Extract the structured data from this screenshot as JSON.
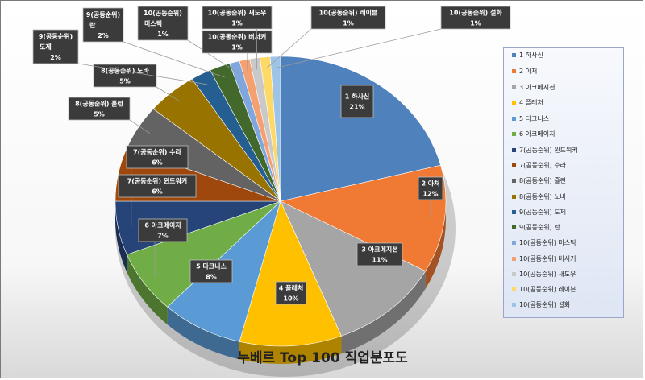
{
  "chart_data": {
    "type": "pie",
    "title": "누베르 Top 100 직업분포도",
    "slices": [
      {
        "label": "1 하사신",
        "value": 21,
        "pct_label": "21%",
        "color": "#4f81bd",
        "callout": [
          "1 하사신"
        ]
      },
      {
        "label": "2 아처",
        "value": 12,
        "pct_label": "12%",
        "color": "#f07a34",
        "callout": [
          "2 아처"
        ]
      },
      {
        "label": "3 아크메지션",
        "value": 11,
        "pct_label": "11%",
        "color": "#a5a5a5",
        "callout": [
          "3 아크메지션"
        ]
      },
      {
        "label": "4 플레처",
        "value": 10,
        "pct_label": "10%",
        "color": "#ffc000",
        "callout": [
          "4 플레처"
        ]
      },
      {
        "label": "5 다크니스",
        "value": 8,
        "pct_label": "8%",
        "color": "#5b9bd5",
        "callout": [
          "5 다크니스"
        ]
      },
      {
        "label": "6 아크메이지",
        "value": 7,
        "pct_label": "7%",
        "color": "#70ad47",
        "callout": [
          "6 아크메이지"
        ]
      },
      {
        "label": "7(공동순위) 윈드워커",
        "value": 6,
        "pct_label": "6%",
        "color": "#264478",
        "callout": [
          "7(공동순위) 윈드워커"
        ]
      },
      {
        "label": "7(공동순위) 수라",
        "value": 6,
        "pct_label": "6%",
        "color": "#9e480e",
        "callout": [
          "7(공동순위) 수라"
        ]
      },
      {
        "label": "8(공동순위) 홀런",
        "value": 5,
        "pct_label": "5%",
        "color": "#636363",
        "callout": [
          "8(공동순위) 홀런"
        ]
      },
      {
        "label": "8(공동순위) 노바",
        "value": 5,
        "pct_label": "5%",
        "color": "#997300",
        "callout": [
          "8(공동순위) 노바"
        ]
      },
      {
        "label": "9(공동순위) 도제",
        "value": 2,
        "pct_label": "2%",
        "color": "#255e91",
        "callout": [
          "9(공동순위)",
          "도제"
        ]
      },
      {
        "label": "9(공동순위) 란",
        "value": 2,
        "pct_label": "2%",
        "color": "#43682b",
        "callout": [
          "9(공동순위)",
          "란"
        ]
      },
      {
        "label": "10(공동순위) 미스틱",
        "value": 1,
        "pct_label": "1%",
        "color": "#7fa7de",
        "callout": [
          "10(공동순위)",
          "미스틱"
        ]
      },
      {
        "label": "10(공동순위) 버서커",
        "value": 1,
        "pct_label": "1%",
        "color": "#f4a070",
        "callout": [
          "10(공동순위) 버서커"
        ]
      },
      {
        "label": "10(공동순위) 새도우",
        "value": 1,
        "pct_label": "1%",
        "color": "#c9c9c9",
        "callout": [
          "10(공동순위) 새도우"
        ]
      },
      {
        "label": "10(공동순위) 레이븐",
        "value": 1,
        "pct_label": "1%",
        "color": "#ffd966",
        "callout": [
          "10(공동순위) 레이븐"
        ]
      },
      {
        "label": "10(공동순위) 설화",
        "value": 1,
        "pct_label": "1%",
        "color": "#9dc3e6",
        "callout": [
          "10(공동순위) 설화"
        ]
      }
    ],
    "legend": {
      "position": "right"
    }
  }
}
